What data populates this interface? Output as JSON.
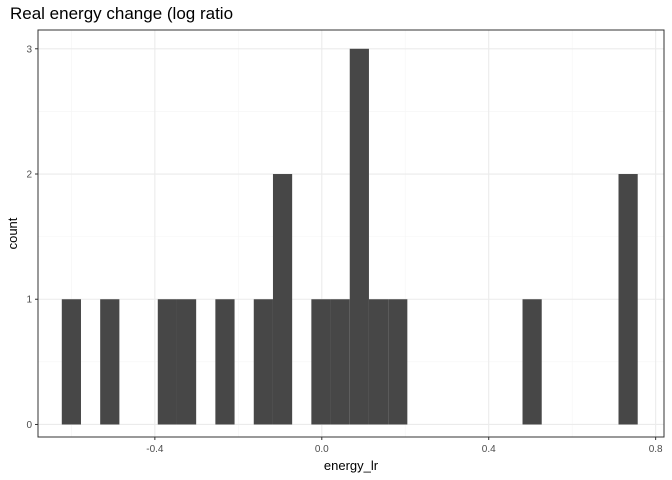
{
  "chart_data": {
    "type": "bar",
    "title": "Real energy change (log ratio",
    "xlabel": "energy_lr",
    "ylabel": "count",
    "xlim": [
      -0.68,
      0.82
    ],
    "ylim": [
      -0.1,
      3.15
    ],
    "x_ticks": [
      -0.4,
      0.0,
      0.4,
      0.8
    ],
    "x_tick_labels": [
      "-0.4",
      "0.0",
      "0.4",
      "0.8"
    ],
    "y_ticks": [
      0,
      1,
      2,
      3
    ],
    "y_tick_labels": [
      "0",
      "1",
      "2",
      "3"
    ],
    "x_minor_ticks": [
      -0.6,
      -0.2,
      0.2,
      0.6
    ],
    "y_minor_ticks": [
      0.5,
      1.5,
      2.5
    ],
    "grid": true,
    "legend": "none",
    "bar_width": 0.046,
    "bins": [
      {
        "x": -0.6,
        "count": 1
      },
      {
        "x": -0.508,
        "count": 1
      },
      {
        "x": -0.37,
        "count": 1
      },
      {
        "x": -0.324,
        "count": 1
      },
      {
        "x": -0.232,
        "count": 1
      },
      {
        "x": -0.14,
        "count": 1
      },
      {
        "x": -0.094,
        "count": 2
      },
      {
        "x": -0.002,
        "count": 1
      },
      {
        "x": 0.044,
        "count": 1
      },
      {
        "x": 0.09,
        "count": 3
      },
      {
        "x": 0.136,
        "count": 1
      },
      {
        "x": 0.182,
        "count": 1
      },
      {
        "x": 0.504,
        "count": 1
      },
      {
        "x": 0.734,
        "count": 2
      }
    ],
    "colors": {
      "bar": "#474747",
      "panel_border": "#333333",
      "grid_major": "#ebebeb",
      "grid_minor": "#f5f5f5",
      "tick_label": "#4d4d4d"
    }
  }
}
